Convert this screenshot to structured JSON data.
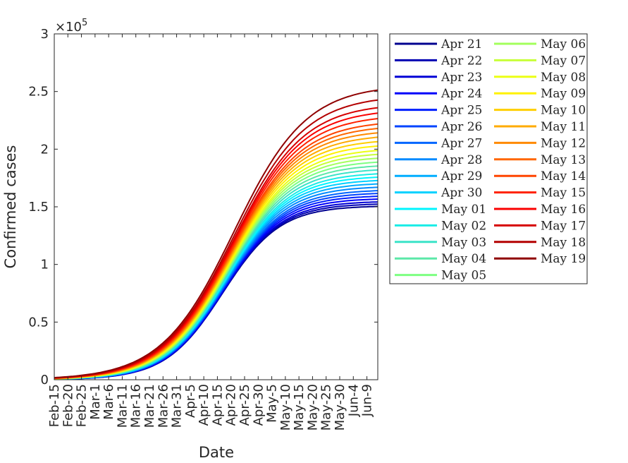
{
  "chart_data": {
    "type": "line",
    "title": "",
    "xlabel": "Date",
    "ylabel": "Confirmed cases",
    "y_exponent_label": "×10",
    "y_exponent_power": "5",
    "x_range_day_offset": [
      0,
      119
    ],
    "ylim": [
      0,
      300000
    ],
    "y_ticks": [
      0,
      50000,
      100000,
      150000,
      200000,
      250000,
      300000
    ],
    "y_tick_labels": [
      "0",
      "0.5",
      "1",
      "1.5",
      "2",
      "2.5",
      "3"
    ],
    "x_tick_labels": [
      "Feb-15",
      "Feb-20",
      "Feb-25",
      "Mar-1",
      "Mar-6",
      "Mar-11",
      "Mar-16",
      "Mar-21",
      "Mar-26",
      "Mar-31",
      "Apr-5",
      "Apr-10",
      "Apr-15",
      "Apr-20",
      "Apr-25",
      "Apr-30",
      "May-5",
      "May-10",
      "May-15",
      "May-20",
      "May-25",
      "May-30",
      "Jun-4",
      "Jun-9"
    ],
    "grid": false,
    "legend_position": "outside-right",
    "series": [
      {
        "name": "Apr 21",
        "color": "#00008f",
        "final_value": 151000
      },
      {
        "name": "Apr 22",
        "color": "#0000b3",
        "final_value": 153000
      },
      {
        "name": "Apr 23",
        "color": "#0000d6",
        "final_value": 155000
      },
      {
        "name": "Apr 24",
        "color": "#0000fa",
        "final_value": 157500
      },
      {
        "name": "Apr 25",
        "color": "#001eff",
        "final_value": 160000
      },
      {
        "name": "Apr 26",
        "color": "#0043ff",
        "final_value": 162500
      },
      {
        "name": "Apr 27",
        "color": "#0066ff",
        "final_value": 165000
      },
      {
        "name": "Apr 28",
        "color": "#008aff",
        "final_value": 168000
      },
      {
        "name": "Apr 29",
        "color": "#00adff",
        "final_value": 171000
      },
      {
        "name": "Apr 30",
        "color": "#00d1ff",
        "final_value": 174000
      },
      {
        "name": "May 01",
        "color": "#00f5ff",
        "final_value": 177000
      },
      {
        "name": "May 02",
        "color": "#1aece6",
        "final_value": 180000
      },
      {
        "name": "May 03",
        "color": "#3be3c8",
        "final_value": 183500
      },
      {
        "name": "May 04",
        "color": "#5ce8a8",
        "final_value": 187000
      },
      {
        "name": "May 05",
        "color": "#7dff82",
        "final_value": 190500
      },
      {
        "name": "May 06",
        "color": "#a3ff5c",
        "final_value": 194000
      },
      {
        "name": "May 07",
        "color": "#c7ff38",
        "final_value": 197500
      },
      {
        "name": "May 08",
        "color": "#ebff14",
        "final_value": 201000
      },
      {
        "name": "May 09",
        "color": "#fff200",
        "final_value": 205000
      },
      {
        "name": "May 10",
        "color": "#ffcf00",
        "final_value": 209000
      },
      {
        "name": "May 11",
        "color": "#ffab00",
        "final_value": 213000
      },
      {
        "name": "May 12",
        "color": "#ff8a00",
        "final_value": 217000
      },
      {
        "name": "May 13",
        "color": "#ff6600",
        "final_value": 221000
      },
      {
        "name": "May 14",
        "color": "#ff4400",
        "final_value": 225000
      },
      {
        "name": "May 15",
        "color": "#ff2100",
        "final_value": 230000
      },
      {
        "name": "May 16",
        "color": "#fa0000",
        "final_value": 235000
      },
      {
        "name": "May 17",
        "color": "#d60000",
        "final_value": 240000
      },
      {
        "name": "May 18",
        "color": "#b30000",
        "final_value": 247000
      },
      {
        "name": "May 19",
        "color": "#8f0000",
        "final_value": 256000
      }
    ]
  }
}
